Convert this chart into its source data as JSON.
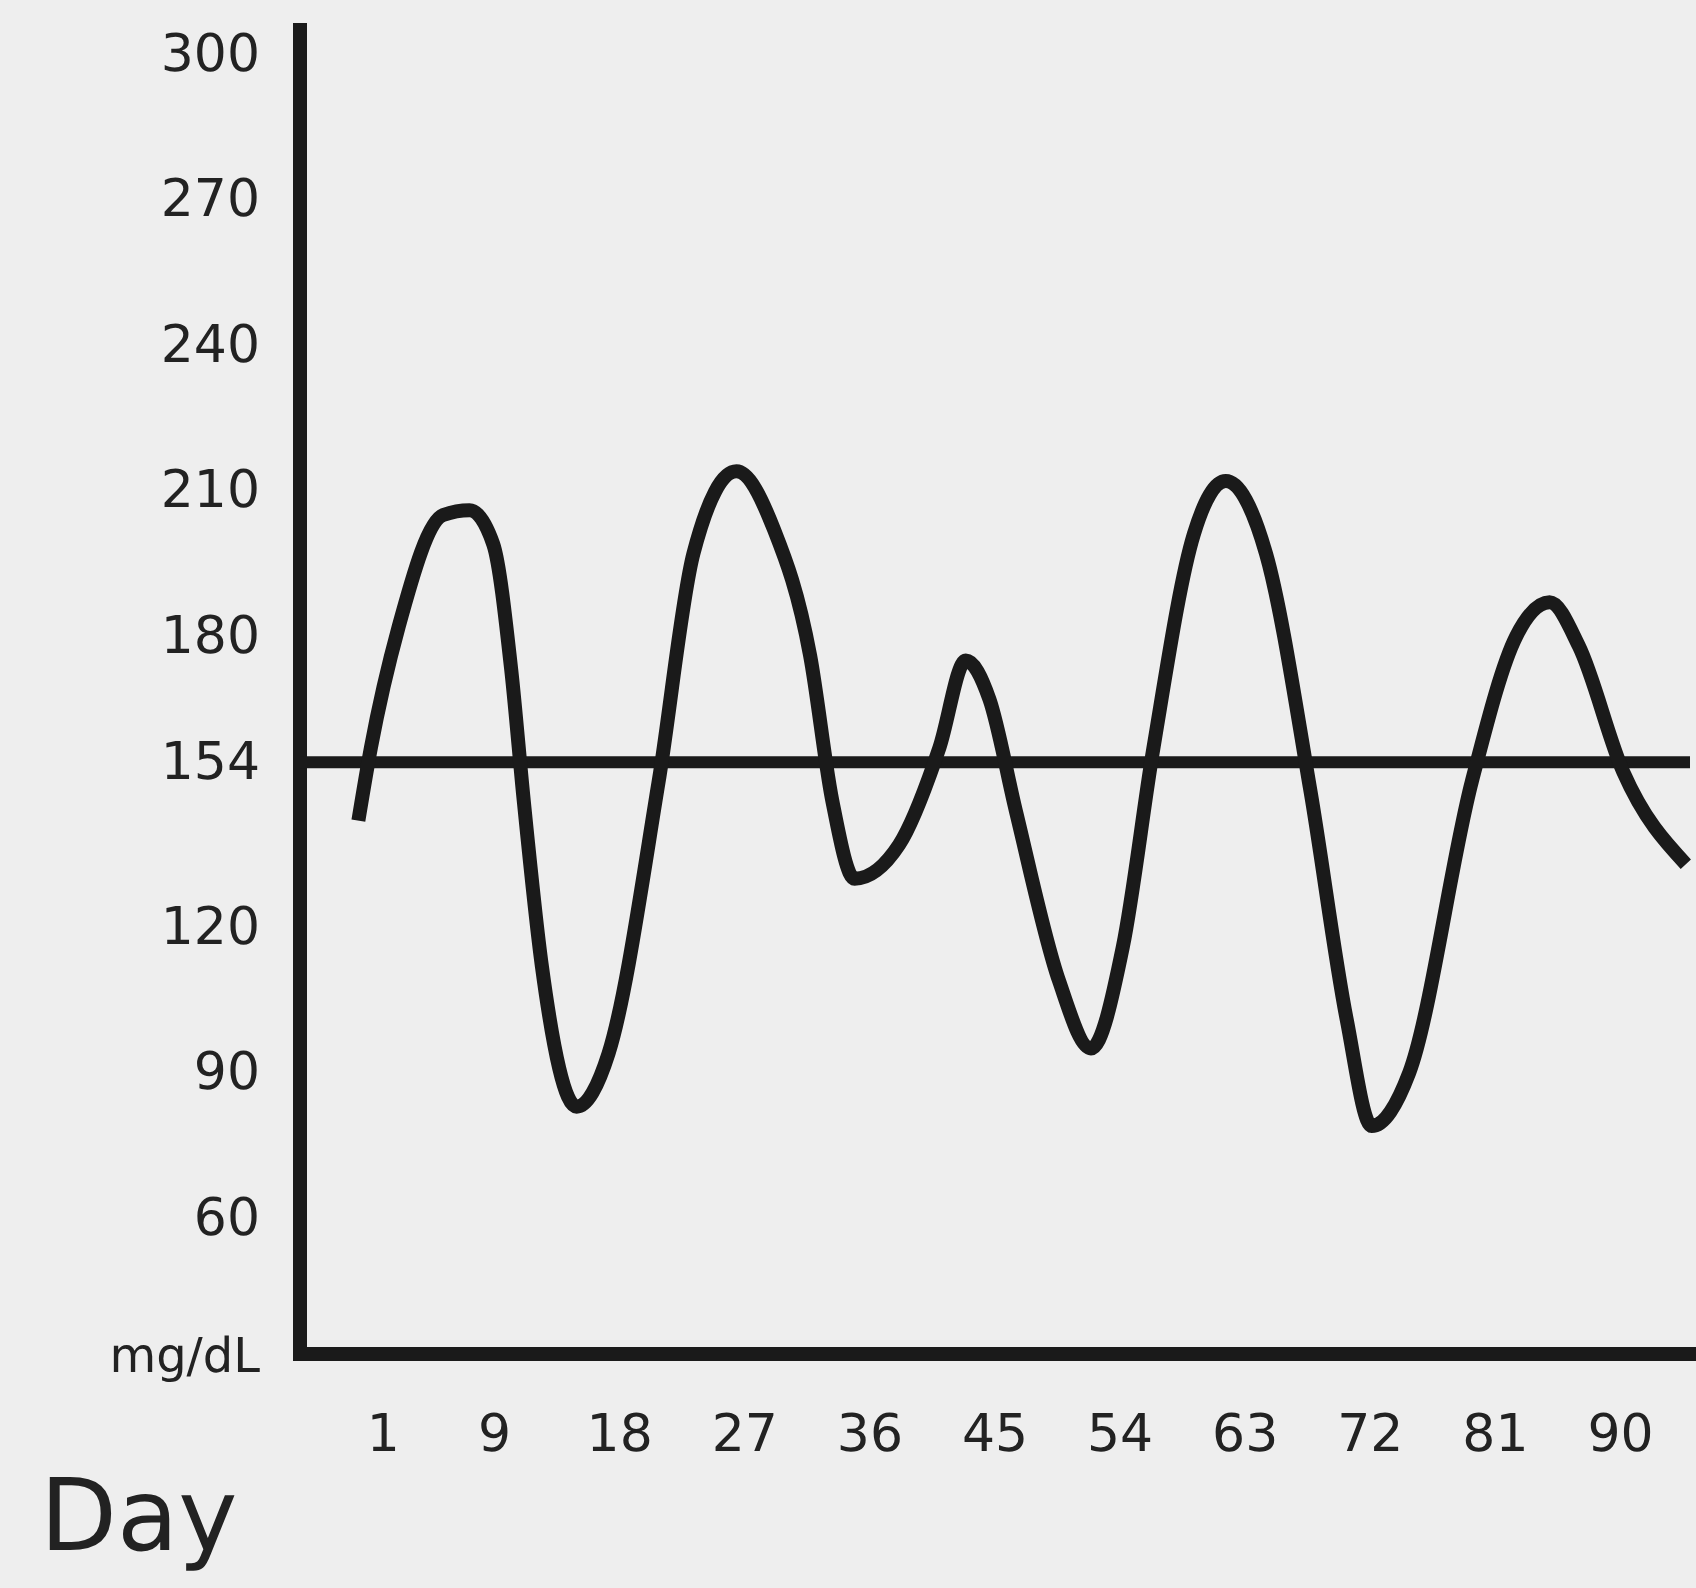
{
  "chart_data": {
    "type": "line",
    "xlabel": "Day",
    "ylabel": "mg/dL",
    "x": [
      -0.8,
      0.1,
      2.1,
      5.3,
      7.2,
      8.9,
      10.2,
      11.1,
      12.4,
      14.9,
      17.2,
      20.8,
      23.3,
      26.4,
      29.1,
      31.7,
      33.3,
      34.9,
      38.1,
      41,
      42.9,
      44.6,
      46.5,
      49.6,
      51.9,
      54.2,
      56.4,
      59.3,
      61.6,
      64.5,
      67.7,
      70.3,
      72.1,
      74.8,
      79.3,
      82.5,
      84.9,
      87,
      90.2,
      94.7
    ],
    "series": [
      {
        "color": "#1a1a1a",
        "values": [
          142,
          157,
          182,
          205,
          206,
          199,
          173,
          146,
          112,
          83,
          94,
          150,
          197,
          214,
          202,
          176,
          146,
          130,
          137,
          157,
          175,
          167,
          144,
          109,
          95,
          116,
          157,
          201,
          212,
          197,
          148,
          101,
          79,
          90,
          150,
          180,
          187,
          178,
          152,
          133
        ]
      }
    ],
    "xlim": [
      -5,
      95
    ],
    "xticks": [
      1,
      9,
      18,
      27,
      36,
      45,
      54,
      63,
      72,
      81,
      90
    ],
    "ylim": [
      32,
      305
    ],
    "yticks": [
      60,
      90,
      120,
      154,
      180,
      210,
      240,
      270,
      300
    ],
    "ref_lines": [
      {
        "axis": "y",
        "value": 154,
        "color": "#1a1a1a"
      }
    ],
    "grid": false,
    "marker": "none",
    "line_style": "solid"
  }
}
